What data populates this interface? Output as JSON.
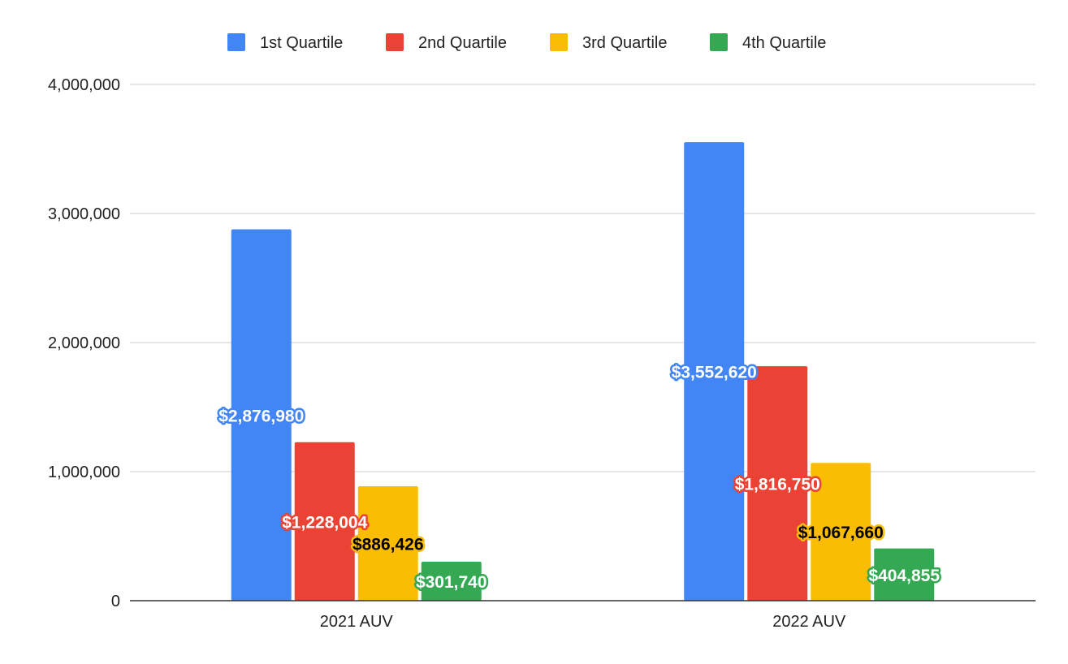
{
  "chart_data": {
    "type": "bar",
    "title": "",
    "xlabel": "",
    "ylabel": "",
    "categories": [
      "2021 AUV",
      "2022 AUV"
    ],
    "ylim": [
      0,
      4000000
    ],
    "yticks": [
      0,
      1000000,
      2000000,
      3000000,
      4000000
    ],
    "ytick_labels": [
      "0",
      "1,000,000",
      "2,000,000",
      "3,000,000",
      "4,000,000"
    ],
    "grid": true,
    "legend": "top-center",
    "series": [
      {
        "name": "1st Quartile",
        "color": "#4285F4",
        "label_text_color": "#ffffff",
        "values": [
          2876980,
          3552620
        ],
        "value_labels": [
          "$2,876,980",
          "$3,552,620"
        ]
      },
      {
        "name": "2nd Quartile",
        "color": "#EA4335",
        "label_text_color": "#ffffff",
        "values": [
          1228004,
          1816750
        ],
        "value_labels": [
          "$1,228,004",
          "$1,816,750"
        ]
      },
      {
        "name": "3rd Quartile",
        "color": "#FBBC04",
        "label_text_color": "#000000",
        "values": [
          886426,
          1067660
        ],
        "value_labels": [
          "$886,426",
          "$1,067,660"
        ]
      },
      {
        "name": "4th Quartile",
        "color": "#34A853",
        "label_text_color": "#ffffff",
        "values": [
          301740,
          404855
        ],
        "value_labels": [
          "$301,740",
          "$404,855"
        ]
      }
    ]
  }
}
